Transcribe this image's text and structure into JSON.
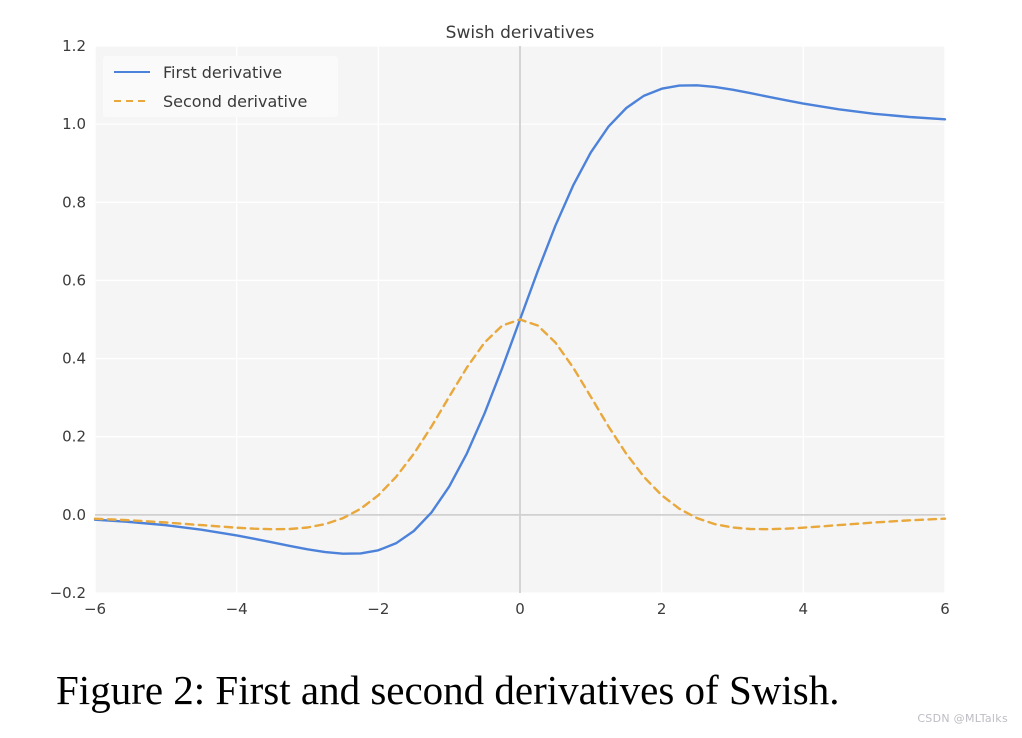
{
  "title": "Swish derivatives",
  "caption": "Figure 2: First and second derivatives of Swish.",
  "watermark": "CSDN @MLTalks",
  "colors": {
    "first_derivative": "#4C82D9",
    "second_derivative": "#E9A83C",
    "plot_bg": "#F5F5F6",
    "grid": "#FFFFFF",
    "zero_line": "#D0D0D0",
    "tick_text": "#3B3B3B",
    "legend_bg": "#FAFAFB",
    "watermark_gray": "#BCBCC4"
  },
  "legend": {
    "items": [
      {
        "label": "First derivative",
        "color": "#4C82D9",
        "style": "solid"
      },
      {
        "label": "Second derivative",
        "color": "#E9A83C",
        "style": "dashed"
      }
    ]
  },
  "chart_data": {
    "type": "line",
    "title": "Swish derivatives",
    "xlabel": "",
    "ylabel": "",
    "xlim": [
      -6,
      6
    ],
    "ylim": [
      -0.2,
      1.2
    ],
    "grid": true,
    "zero_lines": true,
    "legend_position": "upper-left",
    "xticks": {
      "values": [
        -6,
        -4,
        -2,
        0,
        2,
        4,
        6
      ],
      "labels": [
        "−6",
        "−4",
        "−2",
        "0",
        "2",
        "4",
        "6"
      ]
    },
    "yticks": {
      "values": [
        -0.2,
        0.0,
        0.2,
        0.4,
        0.6,
        0.8,
        1.0,
        1.2
      ],
      "labels": [
        "−0.2",
        "0.0",
        "0.2",
        "0.4",
        "0.6",
        "0.8",
        "1.0",
        "1.2"
      ]
    },
    "x": [
      -6,
      -5.5,
      -5,
      -4.5,
      -4,
      -3.75,
      -3.5,
      -3.25,
      -3,
      -2.75,
      -2.5,
      -2.25,
      -2,
      -1.75,
      -1.5,
      -1.25,
      -1,
      -0.75,
      -0.5,
      -0.25,
      0,
      0.25,
      0.5,
      0.75,
      1,
      1.25,
      1.5,
      1.75,
      2,
      2.25,
      2.5,
      2.75,
      3,
      3.25,
      3.5,
      3.75,
      4,
      4.5,
      5,
      5.5,
      6
    ],
    "series": [
      {
        "name": "First derivative",
        "color": "#4C82D9",
        "dash": "solid",
        "values": [
          -0.0123,
          -0.0182,
          -0.0265,
          -0.0379,
          -0.0527,
          -0.0612,
          -0.0703,
          -0.0795,
          -0.0881,
          -0.0952,
          -0.0994,
          -0.0987,
          -0.0908,
          -0.0727,
          -0.0413,
          0.0063,
          0.0723,
          0.1574,
          0.26,
          0.3763,
          0.5,
          0.6237,
          0.74,
          0.8426,
          0.9277,
          0.9937,
          1.0413,
          1.0727,
          1.0908,
          1.0987,
          1.0994,
          1.0952,
          1.0881,
          1.0795,
          1.0703,
          1.0612,
          1.0527,
          1.0379,
          1.0265,
          1.0182,
          1.0123
        ]
      },
      {
        "name": "Second derivative",
        "color": "#E9A83C",
        "dash": "dashed",
        "values": [
          -0.0098,
          -0.014,
          -0.0195,
          -0.0261,
          -0.0328,
          -0.0354,
          -0.0368,
          -0.0362,
          -0.0323,
          -0.0237,
          -0.0085,
          0.0154,
          0.0501,
          0.0969,
          0.1562,
          0.2262,
          0.3024,
          0.3772,
          0.4412,
          0.4846,
          0.5,
          0.4846,
          0.4412,
          0.3772,
          0.3024,
          0.2262,
          0.1562,
          0.0969,
          0.0501,
          0.0154,
          -0.0085,
          -0.0237,
          -0.0323,
          -0.0362,
          -0.0368,
          -0.0354,
          -0.0328,
          -0.0261,
          -0.0195,
          -0.014,
          -0.0098
        ]
      }
    ]
  }
}
